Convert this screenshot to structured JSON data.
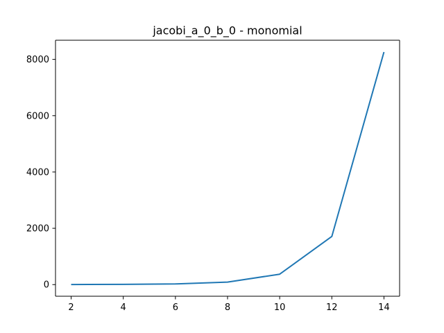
{
  "chart_data": {
    "type": "line",
    "title": "jacobi_a_0_b_0 - monomial",
    "xlabel": "",
    "ylabel": "",
    "xlim": [
      1.4,
      14.6
    ],
    "ylim": [
      -413,
      8680
    ],
    "xticks": [
      2,
      4,
      6,
      8,
      10,
      12,
      14
    ],
    "yticks": [
      0,
      2000,
      4000,
      6000,
      8000
    ],
    "grid": false,
    "series": [
      {
        "color": "#1f77b4",
        "x": [
          2,
          4,
          6,
          8,
          10,
          12,
          14
        ],
        "y": [
          3,
          8,
          25,
          90,
          370,
          1710,
          8260
        ]
      }
    ]
  }
}
